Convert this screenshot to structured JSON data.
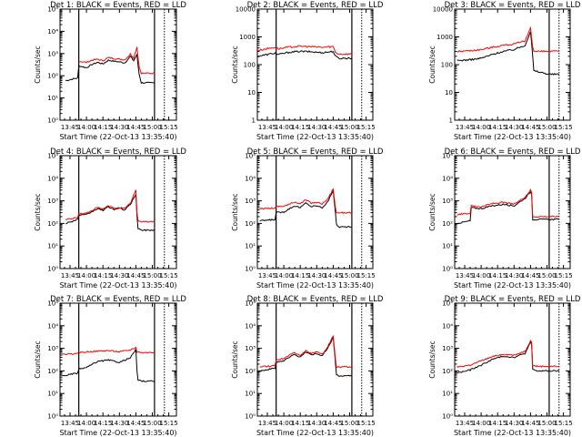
{
  "figure": {
    "x_tick_labels": [
      "13:45",
      "14:00",
      "14:15",
      "14:30",
      "14:45",
      "15:00",
      "15:15"
    ],
    "xlabel": "Start Time (22-Oct-13 13:35:40)",
    "ylabel": "Counts/sec",
    "colors": {
      "events": "#000000",
      "lld": "#ff0000",
      "axes": "#000000",
      "background": "#ffffff"
    }
  },
  "chart_data": [
    {
      "type": "line",
      "title": "Det 1: BLACK = Events, RED = LLD",
      "ylabel": "Counts/sec",
      "xlabel": "Start Time (22-Oct-13 13:35:40)",
      "y_scale": "log",
      "ylim": [
        1,
        100000
      ],
      "y_tick_labels": [
        "10⁰",
        "10¹",
        "10²",
        "10³",
        "10⁴",
        "10⁵"
      ],
      "x_tick_labels": [
        "13:45",
        "14:00",
        "14:15",
        "14:30",
        "14:45",
        "15:00",
        "15:15"
      ],
      "vertical_lines": {
        "solid": [
          "13:53",
          "15:02"
        ],
        "dotted": [
          "15:11"
        ]
      },
      "x": [
        "13:41",
        "13:52",
        "13:53",
        "14:00",
        "14:05",
        "14:10",
        "14:15",
        "14:20",
        "14:25",
        "14:30",
        "14:35",
        "14:40",
        "14:43",
        "14:46",
        "14:47",
        "14:48",
        "14:50",
        "15:02"
      ],
      "series": [
        {
          "name": "Events",
          "color": "#000000",
          "values": [
            60,
            80,
            280,
            230,
            320,
            400,
            340,
            500,
            450,
            420,
            380,
            750,
            480,
            900,
            300,
            120,
            48,
            48
          ]
        },
        {
          "name": "LLD",
          "color": "#ff0000",
          "values": [
            null,
            null,
            450,
            400,
            500,
            550,
            480,
            650,
            600,
            560,
            520,
            950,
            640,
            2000,
            700,
            250,
            130,
            130
          ]
        }
      ]
    },
    {
      "type": "line",
      "title": "Det 2: BLACK = Events, RED = LLD",
      "ylabel": "Counts/sec",
      "xlabel": "Start Time (22-Oct-13 13:35:40)",
      "y_scale": "log",
      "ylim": [
        1,
        10000
      ],
      "y_tick_labels": [
        "1",
        "10",
        "100",
        "1000",
        "10000"
      ],
      "x_tick_labels": [
        "13:45",
        "14:00",
        "14:15",
        "14:30",
        "14:45",
        "15:00",
        "15:15"
      ],
      "vertical_lines": {
        "solid": [
          "13:53",
          "15:02"
        ],
        "dotted": [
          "15:11"
        ]
      },
      "x": [
        "13:36",
        "13:42",
        "13:52",
        "13:55",
        "14:05",
        "14:15",
        "14:25",
        "14:35",
        "14:45",
        "14:47",
        "14:50",
        "15:02"
      ],
      "series": [
        {
          "name": "Events",
          "color": "#000000",
          "values": [
            200,
            220,
            260,
            230,
            280,
            300,
            290,
            270,
            300,
            200,
            170,
            170
          ]
        },
        {
          "name": "LLD",
          "color": "#ff0000",
          "values": [
            320,
            360,
            420,
            370,
            430,
            460,
            440,
            420,
            450,
            280,
            240,
            240
          ]
        }
      ]
    },
    {
      "type": "line",
      "title": "Det 3: BLACK = Events, RED = LLD",
      "ylabel": "Counts/sec",
      "xlabel": "Start Time (22-Oct-13 13:35:40)",
      "y_scale": "log",
      "ylim": [
        1,
        10000
      ],
      "y_tick_labels": [
        "1",
        "10",
        "100",
        "1000",
        "10000"
      ],
      "x_tick_labels": [
        "13:45",
        "14:00",
        "14:15",
        "14:30",
        "14:45",
        "15:00",
        "15:15"
      ],
      "vertical_lines": {
        "solid": [
          "15:02"
        ],
        "dotted": [
          "15:11"
        ]
      },
      "x": [
        "13:38",
        "13:50",
        "14:00",
        "14:10",
        "14:20",
        "14:30",
        "14:40",
        "14:45",
        "14:47",
        "14:48",
        "15:02",
        "15:11"
      ],
      "series": [
        {
          "name": "Events",
          "color": "#000000",
          "values": [
            140,
            150,
            170,
            230,
            300,
            350,
            500,
            1600,
            200,
            60,
            45,
            45
          ]
        },
        {
          "name": "LLD",
          "color": "#ff0000",
          "values": [
            300,
            320,
            350,
            420,
            500,
            550,
            700,
            2200,
            450,
            300,
            300,
            300
          ]
        }
      ]
    },
    {
      "type": "line",
      "title": "Det 4: BLACK = Events, RED = LLD",
      "ylabel": "Counts/sec",
      "xlabel": "Start Time (22-Oct-13 13:35:40)",
      "y_scale": "log",
      "ylim": [
        1,
        100000
      ],
      "y_tick_labels": [
        "10⁰",
        "10¹",
        "10²",
        "10³",
        "10⁴",
        "10⁵"
      ],
      "x_tick_labels": [
        "13:45",
        "14:00",
        "14:15",
        "14:30",
        "14:45",
        "15:00",
        "15:15"
      ],
      "vertical_lines": {
        "solid": [
          "13:53",
          "15:02"
        ],
        "dotted": [
          "15:11"
        ]
      },
      "x": [
        "13:41",
        "13:52",
        "13:53",
        "14:00",
        "14:05",
        "14:10",
        "14:15",
        "14:20",
        "14:25",
        "14:30",
        "14:35",
        "14:40",
        "14:45",
        "14:46",
        "14:47",
        "14:50",
        "15:02"
      ],
      "series": [
        {
          "name": "Events",
          "color": "#000000",
          "values": [
            100,
            150,
            230,
            240,
            330,
            450,
            380,
            540,
            420,
            460,
            400,
            700,
            2000,
            220,
            60,
            50,
            50
          ]
        },
        {
          "name": "LLD",
          "color": "#ff0000",
          "values": [
            150,
            180,
            270,
            280,
            380,
            500,
            430,
            600,
            470,
            520,
            450,
            800,
            3000,
            300,
            130,
            120,
            120
          ]
        }
      ]
    },
    {
      "type": "line",
      "title": "Det 5: BLACK = Events, RED = LLD",
      "ylabel": "Counts/sec",
      "xlabel": "Start Time (22-Oct-13 13:35:40)",
      "y_scale": "log",
      "ylim": [
        1,
        100000
      ],
      "y_tick_labels": [
        "10⁰",
        "10¹",
        "10²",
        "10³",
        "10⁴",
        "10⁵"
      ],
      "x_tick_labels": [
        "13:45",
        "14:00",
        "14:15",
        "14:30",
        "14:45",
        "15:00",
        "15:15"
      ],
      "vertical_lines": {
        "solid": [
          "13:53",
          "15:02"
        ],
        "dotted": [
          "15:11"
        ]
      },
      "x": [
        "13:38",
        "13:52",
        "13:53",
        "14:00",
        "14:05",
        "14:10",
        "14:15",
        "14:20",
        "14:25",
        "14:30",
        "14:35",
        "14:40",
        "14:45",
        "14:47",
        "14:48",
        "14:50",
        "15:02"
      ],
      "series": [
        {
          "name": "Events",
          "color": "#000000",
          "values": [
            130,
            150,
            300,
            320,
            450,
            600,
            500,
            800,
            560,
            600,
            500,
            900,
            3000,
            300,
            90,
            70,
            70
          ]
        },
        {
          "name": "LLD",
          "color": "#ff0000",
          "values": [
            450,
            480,
            560,
            580,
            700,
            900,
            750,
            1100,
            800,
            850,
            750,
            1200,
            3500,
            500,
            300,
            300,
            300
          ]
        }
      ]
    },
    {
      "type": "line",
      "title": "Det 6: BLACK = Events, RED = LLD",
      "ylabel": "Counts/sec",
      "xlabel": "Start Time (22-Oct-13 13:35:40)",
      "y_scale": "log",
      "ylim": [
        1,
        100000
      ],
      "y_tick_labels": [
        "10⁰",
        "10¹",
        "10²",
        "10³",
        "10⁴",
        "10⁵"
      ],
      "x_tick_labels": [
        "13:45",
        "14:00",
        "14:15",
        "14:30",
        "14:45",
        "15:00",
        "15:15"
      ],
      "vertical_lines": {
        "solid": [
          "15:02"
        ],
        "dotted": [
          "15:11"
        ]
      },
      "x": [
        "13:38",
        "13:50",
        "13:51",
        "14:00",
        "14:10",
        "14:20",
        "14:30",
        "14:40",
        "14:45",
        "14:46",
        "14:47",
        "15:02",
        "15:11"
      ],
      "series": [
        {
          "name": "Events",
          "color": "#000000",
          "values": [
            100,
            130,
            500,
            450,
            600,
            700,
            600,
            1300,
            2500,
            2000,
            150,
            150,
            150
          ]
        },
        {
          "name": "LLD",
          "color": "#ff0000",
          "values": [
            250,
            280,
            600,
            550,
            750,
            850,
            700,
            1500,
            3000,
            2400,
            200,
            200,
            200
          ]
        }
      ]
    },
    {
      "type": "line",
      "title": "Det 7: BLACK = Events, RED = LLD",
      "ylabel": "Counts/sec",
      "xlabel": "Start Time (22-Oct-13 13:35:40)",
      "y_scale": "log",
      "ylim": [
        1,
        100000
      ],
      "y_tick_labels": [
        "10⁰",
        "10¹",
        "10²",
        "10³",
        "10⁴",
        "10⁵"
      ],
      "x_tick_labels": [
        "13:45",
        "14:00",
        "14:15",
        "14:30",
        "14:45",
        "15:00",
        "15:15"
      ],
      "vertical_lines": {
        "solid": [
          "13:53",
          "15:02"
        ],
        "dotted": [
          "15:11"
        ]
      },
      "x": [
        "13:38",
        "13:52",
        "13:53",
        "14:00",
        "14:10",
        "14:20",
        "14:30",
        "14:40",
        "14:45",
        "14:46",
        "14:47",
        "14:50",
        "15:02"
      ],
      "series": [
        {
          "name": "Events",
          "color": "#000000",
          "values": [
            60,
            80,
            120,
            140,
            260,
            300,
            240,
            380,
            900,
            100,
            40,
            35,
            35
          ]
        },
        {
          "name": "LLD",
          "color": "#ff0000",
          "values": [
            550,
            570,
            650,
            700,
            750,
            800,
            700,
            850,
            1100,
            700,
            700,
            650,
            650
          ]
        }
      ]
    },
    {
      "type": "line",
      "title": "Det 8: BLACK = Events, RED = LLD",
      "ylabel": "Counts/sec",
      "xlabel": "Start Time (22-Oct-13 13:35:40)",
      "y_scale": "log",
      "ylim": [
        1,
        100000
      ],
      "y_tick_labels": [
        "10⁰",
        "10¹",
        "10²",
        "10³",
        "10⁴",
        "10⁵"
      ],
      "x_tick_labels": [
        "13:45",
        "14:00",
        "14:15",
        "14:30",
        "14:45",
        "15:00",
        "15:15"
      ],
      "vertical_lines": {
        "solid": [
          "13:53",
          "15:02"
        ],
        "dotted": [
          "15:11"
        ]
      },
      "x": [
        "13:38",
        "13:52",
        "13:53",
        "14:00",
        "14:05",
        "14:10",
        "14:15",
        "14:20",
        "14:25",
        "14:30",
        "14:35",
        "14:40",
        "14:45",
        "14:47",
        "14:48",
        "14:50",
        "15:02"
      ],
      "series": [
        {
          "name": "Events",
          "color": "#000000",
          "values": [
            100,
            130,
            250,
            280,
            400,
            550,
            400,
            700,
            520,
            580,
            480,
            1000,
            3000,
            250,
            70,
            60,
            60
          ]
        },
        {
          "name": "LLD",
          "color": "#ff0000",
          "values": [
            150,
            170,
            320,
            350,
            500,
            650,
            480,
            800,
            600,
            680,
            550,
            1200,
            3500,
            350,
            150,
            150,
            150
          ]
        }
      ]
    },
    {
      "type": "line",
      "title": "Det 9: BLACK = Events, RED = LLD",
      "ylabel": "Counts/sec",
      "xlabel": "Start Time (22-Oct-13 13:35:40)",
      "y_scale": "log",
      "ylim": [
        1,
        100000
      ],
      "y_tick_labels": [
        "10⁰",
        "10¹",
        "10²",
        "10³",
        "10⁴",
        "10⁵"
      ],
      "x_tick_labels": [
        "13:45",
        "14:00",
        "14:15",
        "14:30",
        "14:45",
        "15:00",
        "15:15"
      ],
      "vertical_lines": {
        "solid": [
          "15:02"
        ],
        "dotted": [
          "15:11"
        ]
      },
      "x": [
        "13:38",
        "13:50",
        "14:00",
        "14:10",
        "14:20",
        "14:30",
        "14:40",
        "14:45",
        "14:46",
        "14:47",
        "14:50",
        "15:02",
        "15:11"
      ],
      "series": [
        {
          "name": "Events",
          "color": "#000000",
          "values": [
            80,
            110,
            180,
            320,
            450,
            400,
            600,
            1800,
            1500,
            120,
            100,
            100,
            100
          ]
        },
        {
          "name": "LLD",
          "color": "#ff0000",
          "values": [
            150,
            180,
            280,
            420,
            550,
            500,
            750,
            2200,
            1800,
            180,
            160,
            160,
            160
          ]
        }
      ]
    }
  ]
}
